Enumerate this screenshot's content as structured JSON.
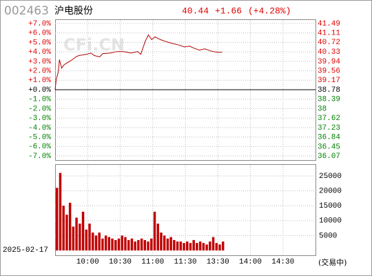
{
  "header": {
    "code": "002463",
    "name": "沪电股份",
    "price": "40.44",
    "change": "+1.66",
    "change_pct": "(+4.28%)"
  },
  "watermark": "CFi.CN",
  "footer": {
    "date": "2025-02-17",
    "status": "(交易中)"
  },
  "chart_data": [
    {
      "type": "line",
      "x": [
        0,
        1,
        3,
        4,
        6,
        8,
        10,
        13,
        16,
        19,
        22,
        25,
        29,
        33,
        36,
        41,
        44,
        51,
        57,
        63,
        70,
        76,
        79,
        83,
        86,
        89,
        92,
        97,
        102,
        108,
        114,
        119,
        124,
        128,
        133,
        138,
        143,
        149,
        154
      ],
      "series": [
        {
          "color": "#b00000",
          "values": [
            38.78,
            39.19,
            39.52,
            40.01,
            39.66,
            39.79,
            39.85,
            39.93,
            40.01,
            40.12,
            40.18,
            40.2,
            40.23,
            40.28,
            40.18,
            40.12,
            40.26,
            40.28,
            40.34,
            40.34,
            40.28,
            40.34,
            40.23,
            40.75,
            41.02,
            40.83,
            40.94,
            40.83,
            40.75,
            40.67,
            40.61,
            40.53,
            40.56,
            40.48,
            40.4,
            40.45,
            40.37,
            40.31,
            40.31
          ]
        }
      ],
      "xlim": [
        0,
        240
      ],
      "xticks": [
        {
          "value": 30,
          "label": "10:00"
        },
        {
          "value": 60,
          "label": "10:30"
        },
        {
          "value": 90,
          "label": "11:00"
        },
        {
          "value": 120,
          "label": "11:30"
        },
        {
          "value": 150,
          "label": "13:30"
        },
        {
          "value": 180,
          "label": "14:00"
        },
        {
          "value": 210,
          "label": "14:30"
        }
      ],
      "ylim": [
        36.07,
        41.49
      ],
      "yticks": [
        41.49,
        41.11,
        40.72,
        40.33,
        39.94,
        39.56,
        39.17,
        38.78,
        38.39,
        38.0,
        37.62,
        37.23,
        36.84,
        36.45,
        36.07
      ],
      "y2lim": [
        -7,
        7
      ],
      "y2ticks": [
        {
          "value": 7,
          "label": "+7.0%"
        },
        {
          "value": 6,
          "label": "+6.0%"
        },
        {
          "value": 5,
          "label": "+5.0%"
        },
        {
          "value": 4,
          "label": "+4.0%"
        },
        {
          "value": 3,
          "label": "+3.0%"
        },
        {
          "value": 2,
          "label": "+2.0%"
        },
        {
          "value": 1,
          "label": "+1.0%"
        },
        {
          "value": 0,
          "label": "+0.0%"
        },
        {
          "value": -1,
          "label": "-1.0%"
        },
        {
          "value": -2,
          "label": "-2.0%"
        },
        {
          "value": -3,
          "label": "-3.0%"
        },
        {
          "value": -4,
          "label": "-4.0%"
        },
        {
          "value": -5,
          "label": "-5.0%"
        },
        {
          "value": -6,
          "label": "-6.0%"
        },
        {
          "value": -7,
          "label": "-7.0%"
        }
      ],
      "grid": true
    },
    {
      "type": "bar",
      "x": [
        0,
        3,
        6,
        9,
        12,
        15,
        18,
        21,
        24,
        27,
        30,
        33,
        36,
        39,
        42,
        45,
        48,
        51,
        54,
        57,
        60,
        63,
        66,
        69,
        72,
        75,
        78,
        81,
        84,
        87,
        90,
        93,
        96,
        99,
        102,
        105,
        108,
        111,
        114,
        117,
        120,
        123,
        126,
        129,
        132,
        135,
        138,
        141,
        144,
        147,
        150,
        153
      ],
      "values": [
        21000,
        26000,
        15000,
        12000,
        16000,
        8000,
        11000,
        9000,
        13000,
        7000,
        9000,
        6000,
        5000,
        6000,
        4000,
        5000,
        4500,
        4000,
        3500,
        4000,
        5000,
        4500,
        3500,
        4000,
        3000,
        3500,
        4000,
        3500,
        3000,
        4000,
        13000,
        9000,
        6000,
        5000,
        4000,
        4500,
        3500,
        3000,
        3000,
        2500,
        3000,
        2500,
        3500,
        2500,
        3000,
        2500,
        2000,
        3000,
        4500,
        2500,
        2000,
        3000
      ],
      "color": "#c00000",
      "xlim": [
        0,
        240
      ],
      "ylim": [
        0,
        28000
      ],
      "yticks": [
        25000,
        20000,
        15000,
        10000,
        5000
      ],
      "grid": true
    }
  ]
}
